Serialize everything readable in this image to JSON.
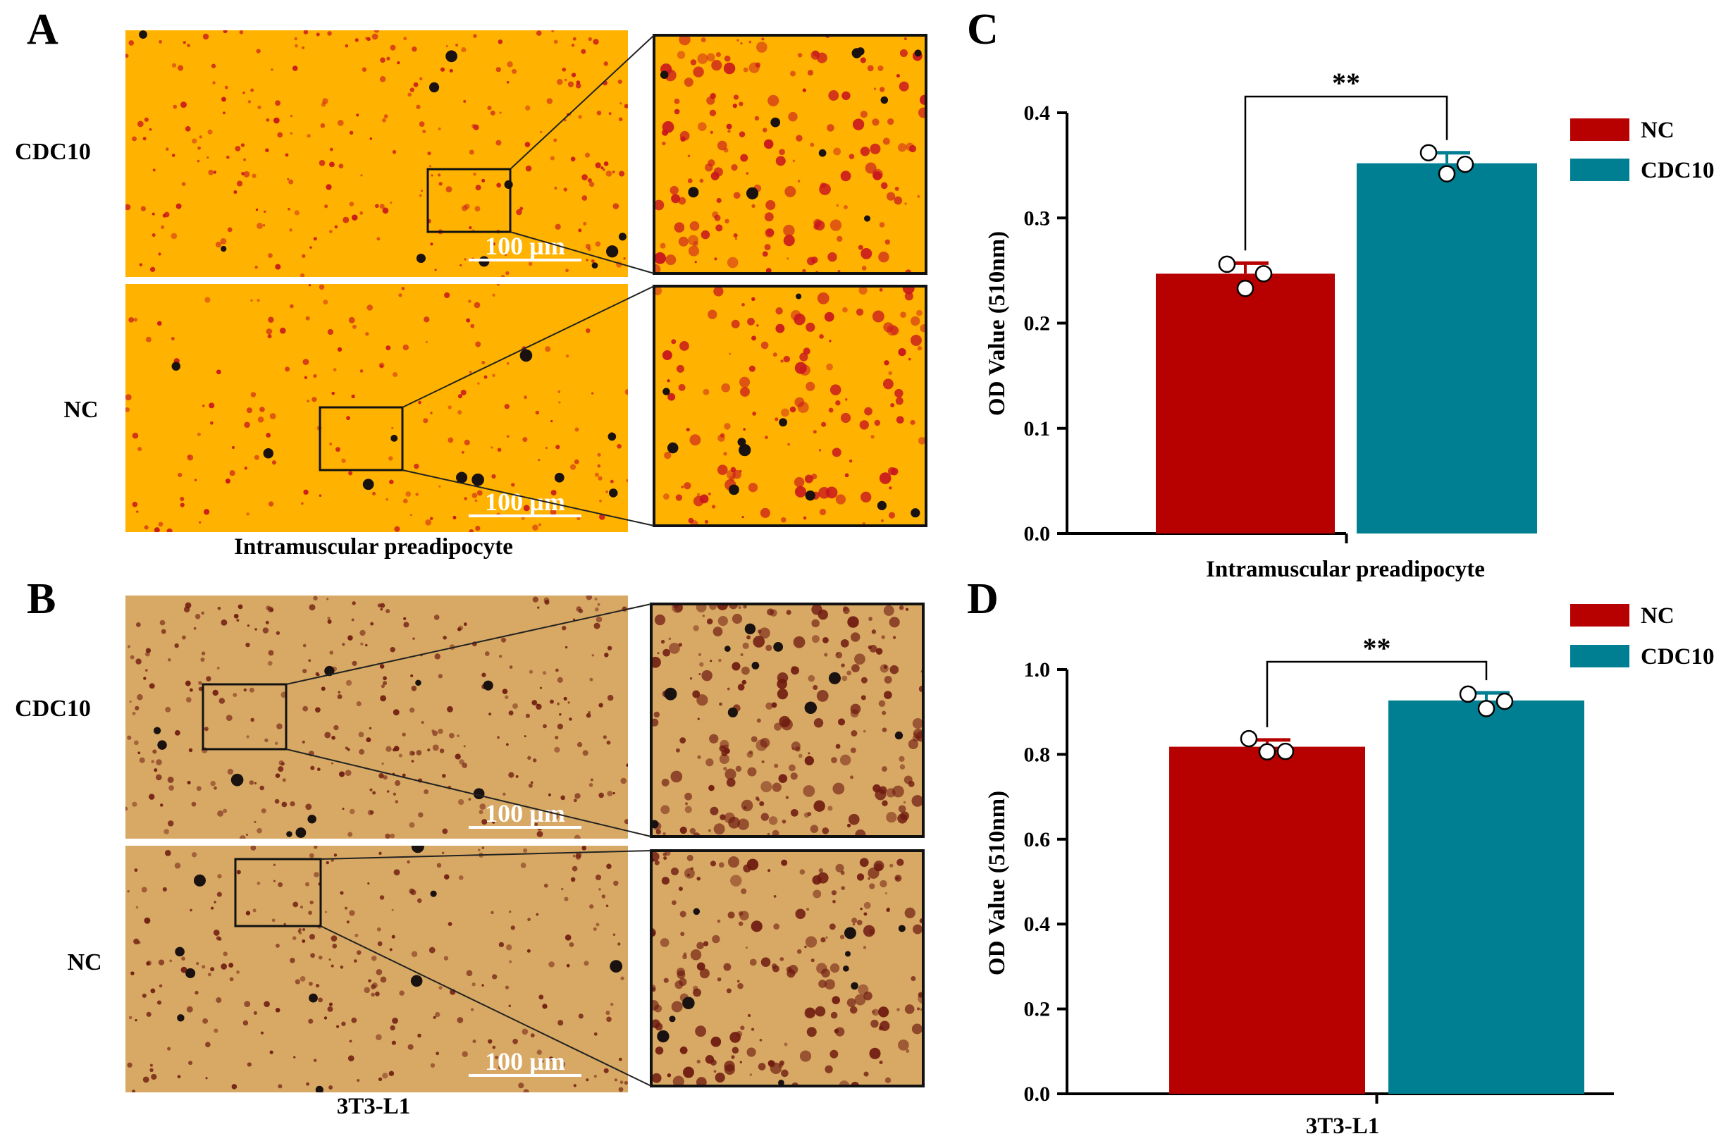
{
  "panels": {
    "A": {
      "letter": "A",
      "rows": [
        {
          "label": "CDC10",
          "scale_label": "100 µm"
        },
        {
          "label": "NC",
          "scale_label": "100 µm"
        }
      ],
      "caption": "Intramuscular preadipocyte"
    },
    "B": {
      "letter": "B",
      "rows": [
        {
          "label": "CDC10",
          "scale_label": "100 µm"
        },
        {
          "label": "NC",
          "scale_label": "100 µm"
        }
      ],
      "caption": "3T3-L1"
    }
  },
  "colors": {
    "NC": "#b70000",
    "CDC10": "#007f93",
    "stainA": "#ffb300",
    "stainB": "#d8a964",
    "dropletA": "#c8141e",
    "dropletB": "#6e1a10"
  },
  "legend": [
    {
      "name": "NC",
      "color": "#b70000"
    },
    {
      "name": "CDC10",
      "color": "#007f93"
    }
  ],
  "chart_data": [
    {
      "letter": "C",
      "type": "bar",
      "categories": [
        "NC",
        "CDC10"
      ],
      "values": [
        0.247,
        0.352
      ],
      "errors": [
        0.01,
        0.01
      ],
      "points": [
        [
          0.256,
          0.233,
          0.247
        ],
        [
          0.362,
          0.342,
          0.351
        ]
      ],
      "significance": "**",
      "ylabel": "OD Value (510nm)",
      "xlabel": "Intramuscular preadipocyte",
      "ylim": [
        0,
        0.4
      ],
      "yticks": [
        "0.0",
        "0.1",
        "0.2",
        "0.3",
        "0.4"
      ],
      "legend_position": "top-right",
      "grid": false
    },
    {
      "letter": "D",
      "type": "bar",
      "categories": [
        "NC",
        "CDC10"
      ],
      "values": [
        0.818,
        0.927
      ],
      "errors": [
        0.016,
        0.018
      ],
      "points": [
        [
          0.837,
          0.806,
          0.807
        ],
        [
          0.942,
          0.908,
          0.925
        ]
      ],
      "significance": "**",
      "ylabel": "OD Value (510nm)",
      "xlabel": "3T3-L1",
      "ylim": [
        0,
        1.0
      ],
      "yticks": [
        "0.0",
        "0.2",
        "0.4",
        "0.6",
        "0.8",
        "1.0"
      ],
      "legend_position": "top-right",
      "grid": false
    }
  ]
}
